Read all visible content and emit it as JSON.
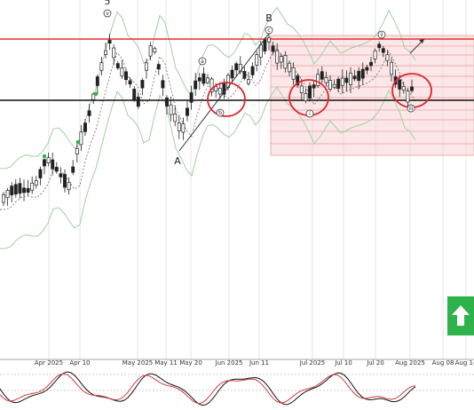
{
  "chart_data": {
    "type": "candlestick",
    "x_tick_labels": [
      "Apr 2025",
      "Apr 10",
      "May 2025",
      "May 11",
      "May 20",
      "Jun 2025",
      "Jun 11",
      "Jul 2025",
      "Jul 10",
      "Jul 20",
      "Aug 2025",
      "Aug 08",
      "Aug 14"
    ],
    "wave_labels": {
      "major": [
        "5",
        "A",
        "B"
      ],
      "minor": [
        "v",
        "a",
        "b",
        "c",
        "i",
        "ii",
        "iii"
      ]
    },
    "resistance_line": "red",
    "support_line": "black",
    "target_zone": "shaded pink",
    "oscillator": "stochastic (black and red lines)",
    "signal": "up"
  },
  "colors": {
    "resistance": "#e8312f",
    "support": "#111111",
    "zone_fill": "#f7c9cc",
    "zone_line": "#ee9a9f",
    "bands": "#9fd0a3",
    "candle": "#222222",
    "signal_green": "#2db34a",
    "circle": "#e0262b",
    "osc_main": "#111111",
    "osc_signal": "#d23a3a"
  },
  "signal_icon": "up-arrow-icon"
}
